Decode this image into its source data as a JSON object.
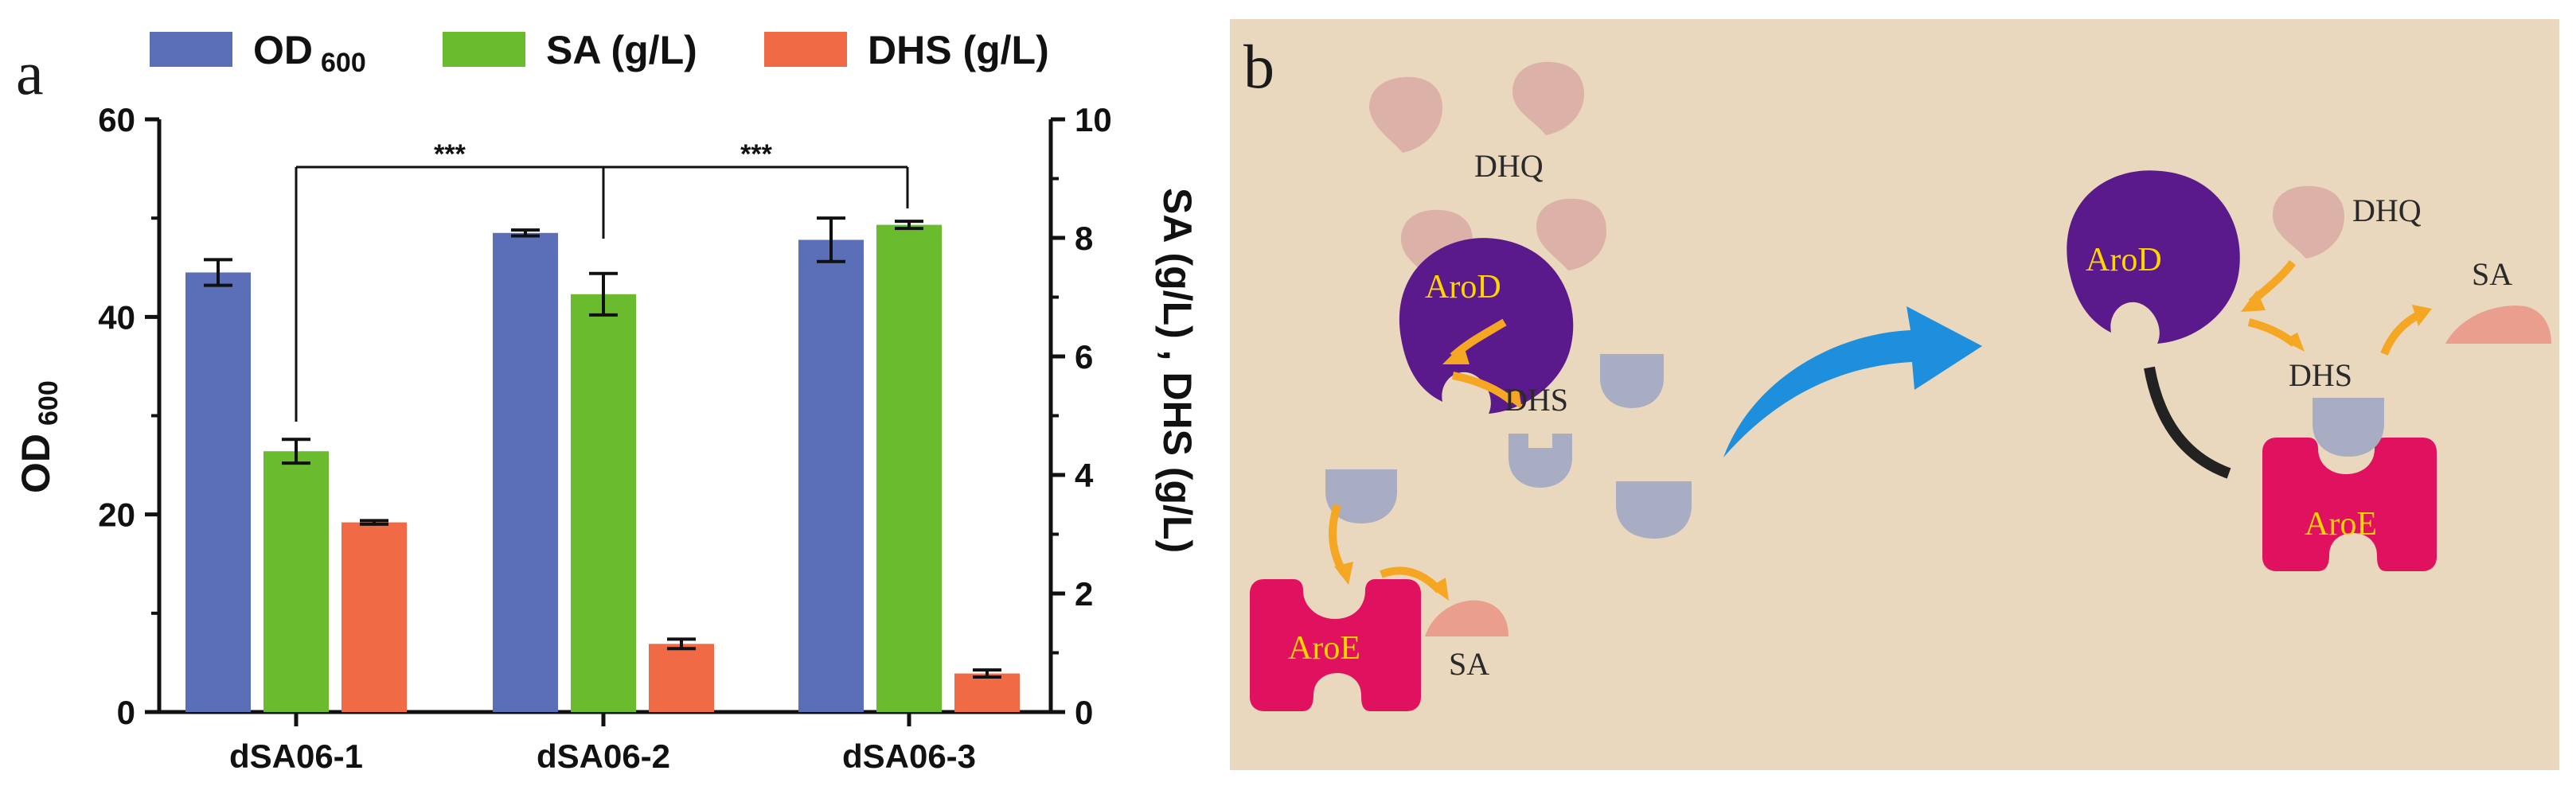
{
  "panel_a": {
    "letter": "a",
    "legend": {
      "od_label": "OD",
      "od_sub": "600",
      "sa_label": "SA (g/L)",
      "dhs_label": "DHS (g/L)"
    },
    "y_left_title": "OD",
    "y_left_title_sub": "600",
    "y_right_title": "SA (g/L) , DHS (g/L)",
    "significance": [
      "***",
      "***"
    ]
  },
  "panel_b": {
    "letter": "b",
    "labels": {
      "dhq_1": "DHQ",
      "dhs_1": "DHS",
      "sa_1": "SA",
      "arod_1": "AroD",
      "aroe_1": "AroE",
      "dhq_2": "DHQ",
      "dhs_2": "DHS",
      "sa_2": "SA",
      "arod_2": "AroD",
      "aroe_2": "AroE"
    },
    "colors": {
      "background": "#e9d8bd",
      "arod": "#5b1a8b",
      "aroe": "#e0115f",
      "dhq": "#dcb2a8",
      "dhs": "#a9adc4",
      "sa": "#e99e8e",
      "arrow_small": "#f5a623",
      "arrow_big": "#1d8fdc"
    }
  },
  "chart_data": {
    "type": "bar",
    "categories": [
      "dSA06-1",
      "dSA06-2",
      "dSA06-3"
    ],
    "series": [
      {
        "name": "OD 600",
        "axis": "left",
        "values": [
          44.5,
          48.5,
          47.8
        ],
        "errors": [
          1.3,
          0.3,
          2.2
        ],
        "color": "#5b6fb8"
      },
      {
        "name": "SA (g/L)",
        "axis": "right",
        "values": [
          4.4,
          7.05,
          8.22
        ],
        "errors": [
          0.2,
          0.35,
          0.06
        ],
        "color": "#6bbb2e"
      },
      {
        "name": "DHS (g/L)",
        "axis": "right",
        "values": [
          3.2,
          1.15,
          0.65
        ],
        "errors": [
          0.03,
          0.08,
          0.06
        ],
        "color": "#ef6a45"
      }
    ],
    "y_left": {
      "label": "OD 600",
      "ylim": [
        0,
        60
      ],
      "ticks": [
        0,
        20,
        40,
        60
      ]
    },
    "y_right": {
      "label": "SA (g/L) , DHS (g/L)",
      "ylim": [
        0,
        10
      ],
      "ticks": [
        0,
        2,
        4,
        6,
        8,
        10
      ]
    },
    "xlabel": "",
    "title": "",
    "legend_position": "top",
    "grid": false,
    "tick_labels_left": [
      "0",
      "20",
      "40",
      "60"
    ],
    "tick_labels_right": [
      "0",
      "2",
      "4",
      "6",
      "8",
      "10"
    ]
  }
}
